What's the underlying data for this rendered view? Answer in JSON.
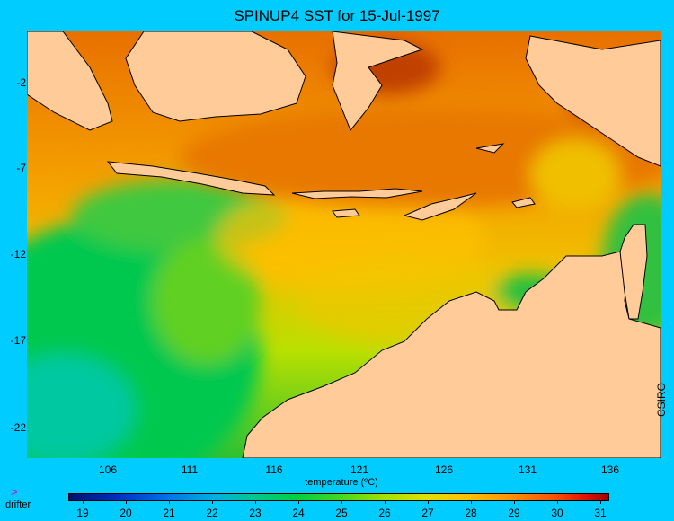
{
  "title": "SPINUP4 SST for 15-Jul-1997",
  "credit": "CSIRO",
  "colorbar": {
    "label": "temperature (ºC)",
    "ticks": [
      "19",
      "20",
      "21",
      "22",
      "23",
      "24",
      "25",
      "26",
      "27",
      "28",
      "29",
      "30",
      "31"
    ]
  },
  "axes": {
    "x_ticks": [
      "106",
      "111",
      "116",
      "121",
      "126",
      "131",
      "136"
    ],
    "y_ticks": [
      "-2",
      "-7",
      "-12",
      "-17",
      "-22"
    ]
  },
  "legend": {
    "marker": ">",
    "label": "drifter"
  },
  "colors": {
    "background": "#00ccff",
    "land": "#ffcc99",
    "sst_warm": "#e07000",
    "sst_mid": "#f0b000",
    "sst_cool": "#20c040"
  }
}
